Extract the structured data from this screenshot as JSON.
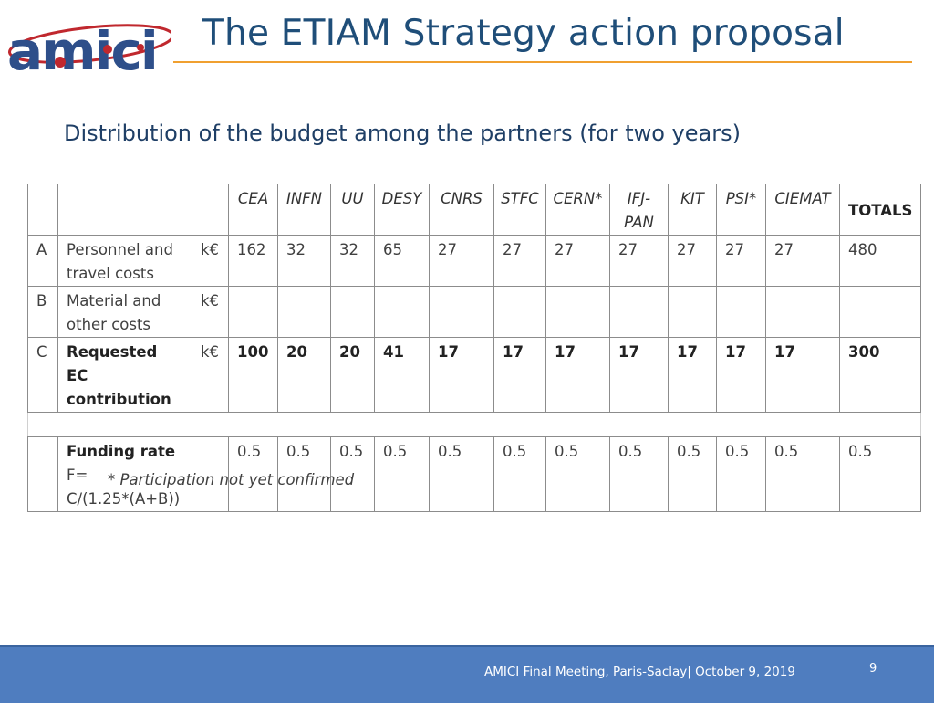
{
  "header": {
    "logo_text": "amici",
    "title": "The ETIAM Strategy action proposal"
  },
  "subtitle": "Distribution of the budget among the partners (for two years)",
  "table": {
    "partners": [
      "CEA",
      "INFN",
      "UU",
      "DESY",
      "CNRS",
      "STFC",
      "CERN*",
      "IFJ-PAN",
      "KIT",
      "PSI*",
      "CIEMAT"
    ],
    "totals_label": "TOTALS",
    "rows": [
      {
        "letter": "A",
        "label": "Personnel and travel costs",
        "unit": "k€",
        "values": [
          "162",
          "32",
          "32",
          "65",
          "27",
          "27",
          "27",
          "27",
          "27",
          "27",
          "27"
        ],
        "total": "480"
      },
      {
        "letter": "B",
        "label": "Material and other costs",
        "unit": "k€",
        "values": [
          "",
          "",
          "",
          "",
          "",
          "",
          "",
          "",
          "",
          "",
          ""
        ],
        "total": ""
      },
      {
        "letter": "C",
        "label": "Requested EC contribution",
        "unit": "k€",
        "values": [
          "100",
          "20",
          "20",
          "41",
          "17",
          "17",
          "17",
          "17",
          "17",
          "17",
          "17"
        ],
        "total": "300"
      }
    ],
    "funding": {
      "label": "Funding rate",
      "formula_line1": "F=",
      "formula_line2": "C/(1.25*(A+B))",
      "values": [
        "0.5",
        "0.5",
        "0.5",
        "0.5",
        "0.5",
        "0.5",
        "0.5",
        "0.5",
        "0.5",
        "0.5",
        "0.5"
      ],
      "total": "0.5"
    }
  },
  "note": "* Participation not yet confirmed",
  "footer": {
    "text": "AMICI Final Meeting, Paris-Saclay| October 9, 2019",
    "page_number": "9"
  },
  "colors": {
    "title": "#1f4e79",
    "accent_rule": "#f0a030",
    "footer_bar": "#4f7dbf",
    "logo_blue": "#2e4f8a",
    "logo_red": "#c0282e"
  }
}
